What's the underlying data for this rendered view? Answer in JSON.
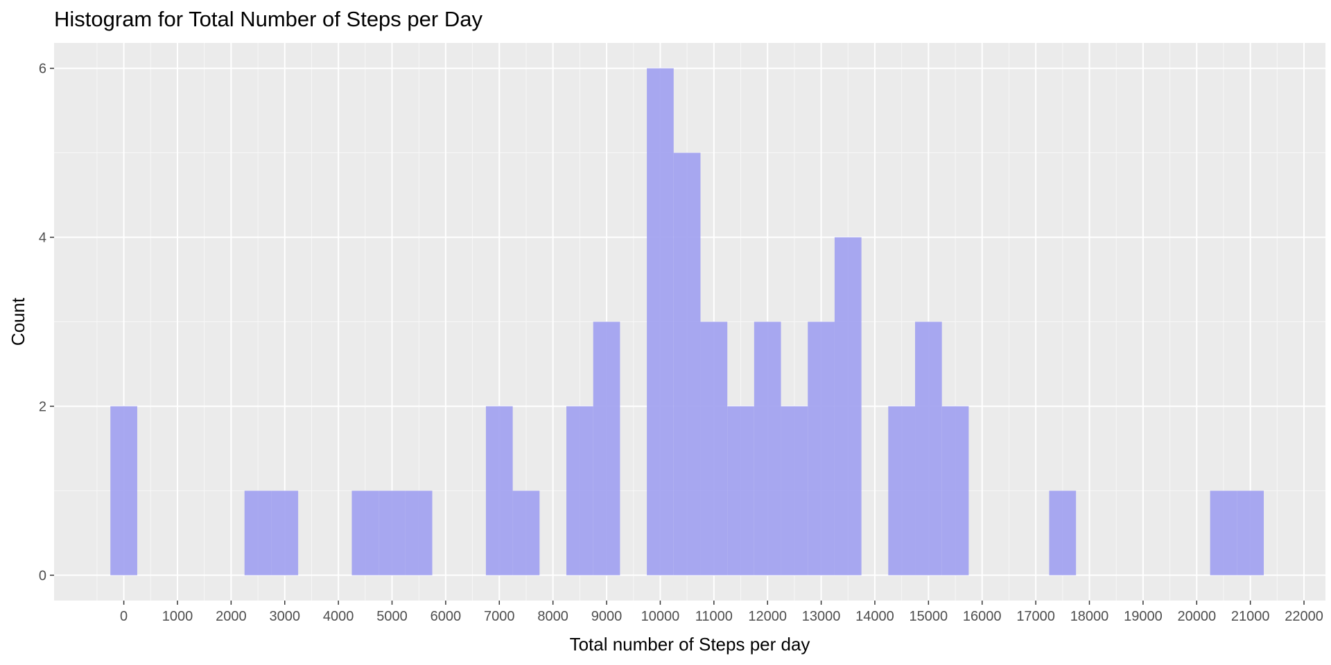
{
  "chart_data": {
    "type": "bar",
    "title": "Histogram for Total Number of Steps per Day",
    "xlabel": "Total number of Steps per day",
    "ylabel": "Count",
    "bin_width": 500,
    "xlim": [
      -1300,
      22400
    ],
    "ylim": [
      -0.3,
      6.3
    ],
    "x_ticks": [
      0,
      1000,
      2000,
      3000,
      4000,
      5000,
      6000,
      7000,
      8000,
      9000,
      10000,
      11000,
      12000,
      13000,
      14000,
      15000,
      16000,
      17000,
      18000,
      19000,
      20000,
      21000,
      22000
    ],
    "y_ticks": [
      0,
      2,
      4,
      6
    ],
    "bin_centers": [
      0,
      2500,
      3000,
      4500,
      5000,
      5500,
      7000,
      7500,
      8500,
      9000,
      10000,
      10500,
      11000,
      11500,
      12000,
      12500,
      13000,
      13500,
      14500,
      15000,
      15500,
      17500,
      20500,
      21000
    ],
    "counts": [
      2,
      1,
      1,
      1,
      1,
      1,
      2,
      1,
      2,
      3,
      6,
      5,
      3,
      2,
      3,
      2,
      3,
      4,
      2,
      3,
      2,
      1,
      1,
      1
    ],
    "bar_color": "#a3a3f0",
    "panel_background": "#ebebeb",
    "grid": true,
    "legend": "none"
  }
}
